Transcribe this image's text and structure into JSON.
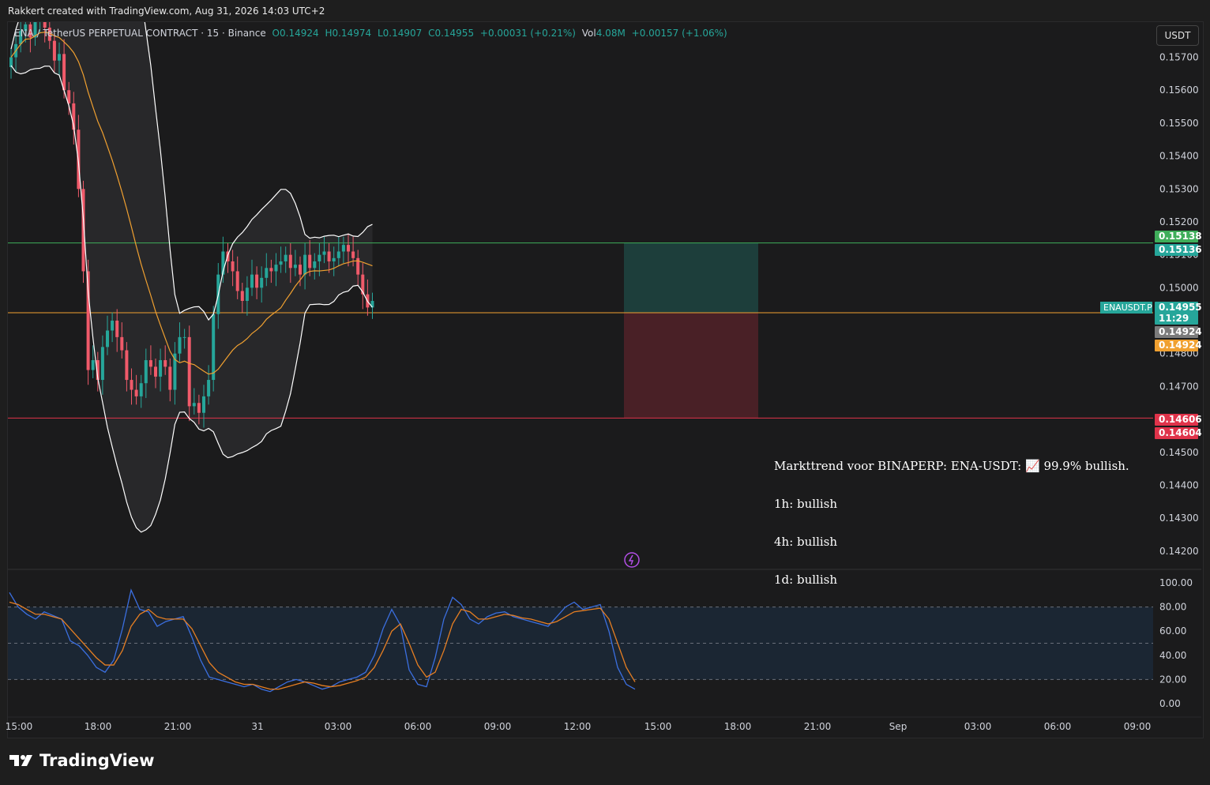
{
  "header": {
    "created_by": "Rakkert created with TradingView.com, Aug 31, 2026 14:03 UTC+2"
  },
  "legend": {
    "symbol": "ENA / TetherUS PERPETUAL CONTRACT · 15 · Binance",
    "open": "O0.14924",
    "high": "H0.14974",
    "low": "L0.14907",
    "close": "C0.14955",
    "change": "+0.00031 (+0.21%)",
    "vol_label": "Vol",
    "vol_value": "4.08M",
    "vol_change": "+0.00157 (+1.06%)"
  },
  "currency_button": "USDT",
  "annotation": {
    "line1": "Markttrend voor BINAPERP: ENA-USDT: 📈 99.9% bullish.",
    "line2": "1h: bullish",
    "line3": "4h: bullish",
    "line4": "1d: bullish"
  },
  "footer": {
    "brand": "TradingView"
  },
  "colors": {
    "up": "#26a69a",
    "down": "#f05a6a",
    "ma": "#f0a030",
    "band": "#ffffff",
    "stoch_k": "#3b6fe0",
    "stoch_d": "#e67e22",
    "target_line": "#3fae5a",
    "entry_line": "#f0a030",
    "stop_line": "#e0334a"
  },
  "chart_data": [
    {
      "type": "candlestick",
      "title": "ENA / TetherUS PERPETUAL CONTRACT · 15 · Binance",
      "y_ticks": [
        "0.15700",
        "0.15600",
        "0.15500",
        "0.15400",
        "0.15300",
        "0.15200",
        "0.15100",
        "0.15000",
        "0.14800",
        "0.14700",
        "0.14500",
        "0.14400",
        "0.14300",
        "0.14200"
      ],
      "x_ticks": [
        "15:00",
        "18:00",
        "21:00",
        "31",
        "03:00",
        "06:00",
        "09:00",
        "12:00",
        "15:00",
        "18:00",
        "21:00",
        "Sep",
        "03:00",
        "06:00",
        "09:00"
      ],
      "ylim": [
        0.1413,
        0.1585
      ],
      "price_labels": [
        {
          "text": "0.15138",
          "color": "#3fae5a"
        },
        {
          "text": "0.15136",
          "color": "#26a69a"
        },
        {
          "text": "0.14955",
          "color": "#26a69a"
        },
        {
          "text": "11:29",
          "color": "#26a69a"
        },
        {
          "text": "0.14924",
          "color": "#7b7b7b"
        },
        {
          "text": "0.14924",
          "color": "#f0a030"
        },
        {
          "text": "0.14606",
          "color": "#e0334a"
        },
        {
          "text": "0.14604",
          "color": "#e0334a"
        }
      ],
      "symbol_tag": "ENAUSDT.P",
      "levels": {
        "target": 0.15136,
        "entry": 0.14924,
        "stop": 0.14604
      },
      "closes": [
        0.157,
        0.1574,
        0.1578,
        0.158,
        0.1576,
        0.1581,
        0.1583,
        0.1579,
        0.1575,
        0.1569,
        0.1571,
        0.156,
        0.1556,
        0.1548,
        0.153,
        0.1505,
        0.1475,
        0.1478,
        0.1472,
        0.1482,
        0.1487,
        0.149,
        0.1485,
        0.1481,
        0.1472,
        0.1469,
        0.1467,
        0.1471,
        0.1478,
        0.1476,
        0.1473,
        0.1478,
        0.1476,
        0.1469,
        0.148,
        0.1485,
        0.1485,
        0.1464,
        0.1465,
        0.1462,
        0.1467,
        0.1472,
        0.1492,
        0.1504,
        0.1511,
        0.1508,
        0.1505,
        0.1499,
        0.1496,
        0.15,
        0.1504,
        0.15,
        0.1503,
        0.1506,
        0.1505,
        0.1507,
        0.1508,
        0.151,
        0.1506,
        0.1507,
        0.1504,
        0.151,
        0.1506,
        0.1508,
        0.151,
        0.1511,
        0.1508,
        0.1509,
        0.1511,
        0.1513,
        0.1511,
        0.1509,
        0.1504,
        0.1498,
        0.1494,
        0.1496
      ]
    },
    {
      "type": "line",
      "title": "",
      "y_ticks": [
        "100.00",
        "80.00",
        "60.00",
        "40.00",
        "20.00",
        "0.00"
      ],
      "ylim": [
        -5,
        105
      ],
      "bands": [
        20,
        50,
        80
      ],
      "series": [
        {
          "values": [
            92,
            80,
            74,
            70,
            76,
            73,
            70,
            52,
            48,
            40,
            30,
            26,
            36,
            62,
            94,
            78,
            76,
            64,
            68,
            70,
            72,
            55,
            36,
            22,
            20,
            18,
            16,
            14,
            16,
            12,
            10,
            14,
            18,
            20,
            18,
            15,
            12,
            14,
            18,
            20,
            22,
            26,
            40,
            62,
            78,
            65,
            28,
            16,
            14,
            38,
            70,
            88,
            82,
            70,
            66,
            72,
            75,
            76,
            72,
            70,
            68,
            66,
            64,
            72,
            80,
            84,
            78,
            80,
            82,
            60,
            30,
            16,
            12
          ]
        },
        {
          "values": [
            84,
            82,
            78,
            74,
            74,
            72,
            70,
            62,
            54,
            46,
            38,
            32,
            32,
            44,
            64,
            74,
            78,
            72,
            70,
            70,
            70,
            62,
            48,
            34,
            26,
            22,
            18,
            16,
            16,
            14,
            12,
            12,
            14,
            16,
            18,
            17,
            15,
            14,
            15,
            17,
            19,
            22,
            30,
            44,
            60,
            66,
            50,
            32,
            22,
            26,
            44,
            66,
            78,
            76,
            70,
            70,
            72,
            74,
            73,
            71,
            70,
            68,
            66,
            68,
            72,
            76,
            77,
            78,
            79,
            70,
            50,
            30,
            18
          ]
        }
      ]
    }
  ]
}
